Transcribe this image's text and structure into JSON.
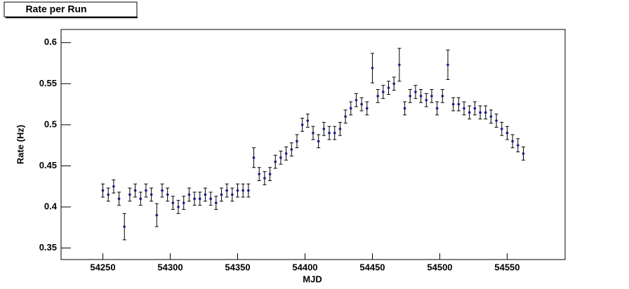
{
  "chart_data": {
    "type": "scatter",
    "title": "Rate per Run",
    "x_label": "MJD",
    "y_label": "Rate (Hz)",
    "x": [
      54250,
      54254,
      54258,
      54262,
      54266,
      54270,
      54274,
      54278,
      54282,
      54286,
      54290,
      54294,
      54298,
      54302,
      54306,
      54310,
      54314,
      54318,
      54322,
      54326,
      54330,
      54334,
      54338,
      54342,
      54346,
      54350,
      54354,
      54358,
      54362,
      54366,
      54370,
      54374,
      54378,
      54382,
      54386,
      54390,
      54394,
      54398,
      54402,
      54406,
      54410,
      54414,
      54418,
      54422,
      54426,
      54430,
      54434,
      54438,
      54442,
      54446,
      54450,
      54454,
      54458,
      54462,
      54466,
      54470,
      54474,
      54478,
      54482,
      54486,
      54490,
      54494,
      54498,
      54502,
      54506,
      54510,
      54514,
      54518,
      54522,
      54526,
      54530,
      54534,
      54538,
      54542,
      54546,
      54550,
      54554,
      54558,
      54562
    ],
    "values": [
      0.42,
      0.415,
      0.425,
      0.41,
      0.376,
      0.415,
      0.42,
      0.41,
      0.42,
      0.415,
      0.39,
      0.42,
      0.415,
      0.405,
      0.4,
      0.405,
      0.415,
      0.41,
      0.41,
      0.415,
      0.41,
      0.405,
      0.415,
      0.42,
      0.415,
      0.42,
      0.42,
      0.42,
      0.46,
      0.44,
      0.435,
      0.44,
      0.455,
      0.46,
      0.465,
      0.47,
      0.48,
      0.5,
      0.505,
      0.49,
      0.48,
      0.495,
      0.49,
      0.49,
      0.495,
      0.51,
      0.52,
      0.53,
      0.525,
      0.52,
      0.569,
      0.535,
      0.54,
      0.545,
      0.55,
      0.573,
      0.52,
      0.535,
      0.54,
      0.535,
      0.53,
      0.535,
      0.52,
      0.535,
      0.573,
      0.525,
      0.525,
      0.52,
      0.515,
      0.52,
      0.515,
      0.515,
      0.51,
      0.505,
      0.495,
      0.49,
      0.48,
      0.475,
      0.465
    ],
    "errors": [
      0.008,
      0.008,
      0.008,
      0.008,
      0.016,
      0.008,
      0.008,
      0.008,
      0.008,
      0.008,
      0.014,
      0.008,
      0.008,
      0.008,
      0.008,
      0.008,
      0.008,
      0.008,
      0.008,
      0.008,
      0.008,
      0.008,
      0.008,
      0.008,
      0.008,
      0.008,
      0.008,
      0.008,
      0.012,
      0.008,
      0.008,
      0.008,
      0.008,
      0.008,
      0.008,
      0.008,
      0.008,
      0.008,
      0.008,
      0.008,
      0.008,
      0.008,
      0.008,
      0.008,
      0.008,
      0.008,
      0.008,
      0.008,
      0.008,
      0.008,
      0.018,
      0.008,
      0.008,
      0.008,
      0.008,
      0.02,
      0.008,
      0.008,
      0.008,
      0.008,
      0.008,
      0.008,
      0.008,
      0.008,
      0.018,
      0.008,
      0.008,
      0.008,
      0.008,
      0.008,
      0.008,
      0.008,
      0.008,
      0.008,
      0.008,
      0.008,
      0.008,
      0.008,
      0.008
    ],
    "color": "#1a1a8c",
    "error_color": "#000000",
    "xlim": [
      54219,
      54593
    ],
    "ylim": [
      0.336,
      0.616
    ],
    "xticks": [
      54250,
      54300,
      54350,
      54400,
      54450,
      54500,
      54550
    ],
    "yticks": [
      0.35,
      0.4,
      0.45,
      0.5,
      0.55,
      0.6
    ]
  }
}
